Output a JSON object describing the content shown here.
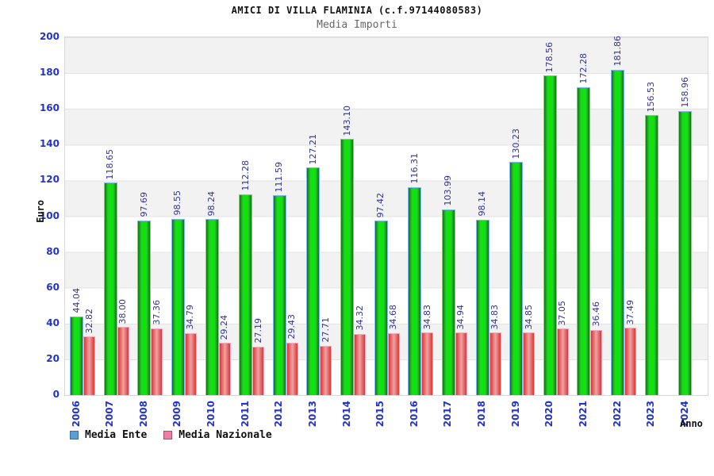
{
  "chart_data": {
    "type": "bar",
    "title": "AMICI DI VILLA FLAMINIA (c.f.97144080583)",
    "subtitle": "Media Importi",
    "xlabel": "Anno",
    "ylabel": "Euro",
    "ylim": [
      0,
      200
    ],
    "ytick_step": 20,
    "yticks": [
      0,
      20,
      40,
      60,
      80,
      100,
      120,
      140,
      160,
      180,
      200
    ],
    "grid": "horizontal-bands",
    "legend_position": "bottom-left",
    "categories": [
      "2006",
      "2007",
      "2008",
      "2009",
      "2010",
      "2011",
      "2012",
      "2013",
      "2014",
      "2015",
      "2016",
      "2017",
      "2018",
      "2019",
      "2020",
      "2021",
      "2022",
      "2023",
      "2024"
    ],
    "series": [
      {
        "name": "Media Ente",
        "legend_swatch_fill": "#5d9fd3",
        "legend_swatch_border": "#3a6ea5",
        "bar_edge_color": "#0b7a0b",
        "bar_center_color": "#00ee00",
        "bar_outline_color": "#84b9ee",
        "values": [
          44.04,
          118.65,
          97.69,
          98.55,
          98.24,
          112.28,
          111.59,
          127.21,
          143.1,
          97.42,
          116.31,
          103.99,
          98.14,
          130.23,
          178.56,
          172.28,
          181.86,
          156.53,
          158.96
        ]
      },
      {
        "name": "Media Nazionale",
        "legend_swatch_fill": "#ec7fa4",
        "legend_swatch_border": "#b04a6e",
        "bar_edge_color": "#e03434",
        "bar_center_color": "#eda3a3",
        "bar_outline_color": "#f8a9c2",
        "values": [
          32.82,
          38.0,
          37.36,
          34.79,
          29.24,
          27.19,
          29.43,
          27.71,
          34.32,
          34.68,
          34.83,
          34.94,
          34.83,
          34.85,
          37.05,
          36.46,
          37.49,
          null,
          null
        ]
      }
    ],
    "value_label_color": "#333399",
    "tick_label_color": "#2233cc",
    "title_color": "#111111",
    "subtitle_color": "#666666"
  }
}
